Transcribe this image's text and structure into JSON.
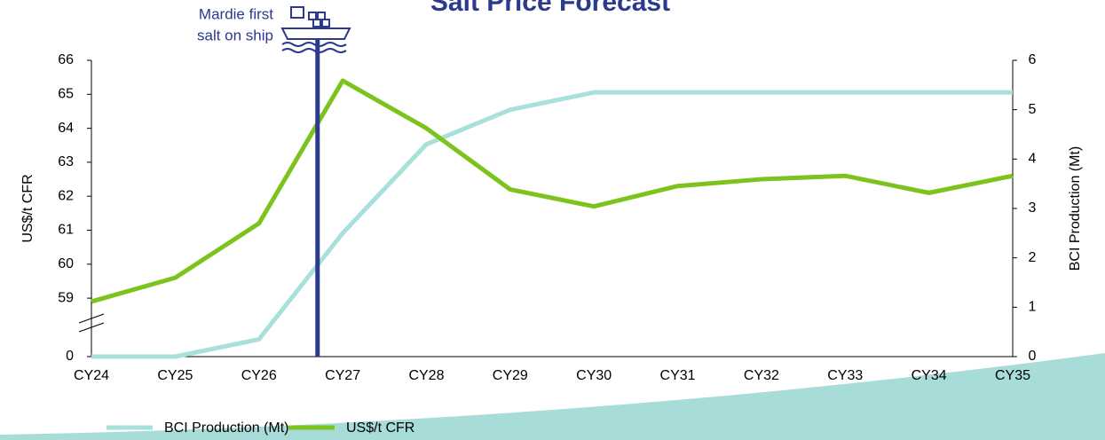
{
  "chart_data": {
    "type": "line",
    "title": "Salt Price Forecast",
    "categories": [
      "CY24",
      "CY25",
      "CY26",
      "CY27",
      "CY28",
      "CY29",
      "CY30",
      "CY31",
      "CY32",
      "CY33",
      "CY34",
      "CY35"
    ],
    "series": [
      {
        "name": "BCI Production (Mt)",
        "color": "#a8e0dc",
        "axis": "y2",
        "values": [
          0,
          0,
          0.35,
          2.5,
          4.3,
          5.0,
          5.35,
          5.35,
          5.35,
          5.35,
          5.35,
          5.35
        ]
      },
      {
        "name": "US$/t CFR",
        "color": "#7dc31e",
        "values": [
          58.9,
          59.6,
          61.2,
          65.4,
          64.0,
          62.2,
          61.7,
          62.3,
          62.5,
          62.6,
          62.1,
          62.6
        ]
      }
    ],
    "ylabel": "US$/t CFR",
    "y2label": "BCI Production (Mt)",
    "ylim": [
      0,
      66
    ],
    "ybreak": [
      0,
      57.28
    ],
    "yticks": [
      0,
      59,
      60,
      61,
      62,
      63,
      64,
      65,
      66
    ],
    "y2lim": [
      0,
      6
    ],
    "y2ticks": [
      0,
      1,
      2,
      3,
      4,
      5,
      6
    ],
    "legend": "bottom-left",
    "event_marker": {
      "position": 2.7,
      "color": "#2b3a8c",
      "label": [
        "Mardie first",
        "salt on ship"
      ]
    }
  }
}
